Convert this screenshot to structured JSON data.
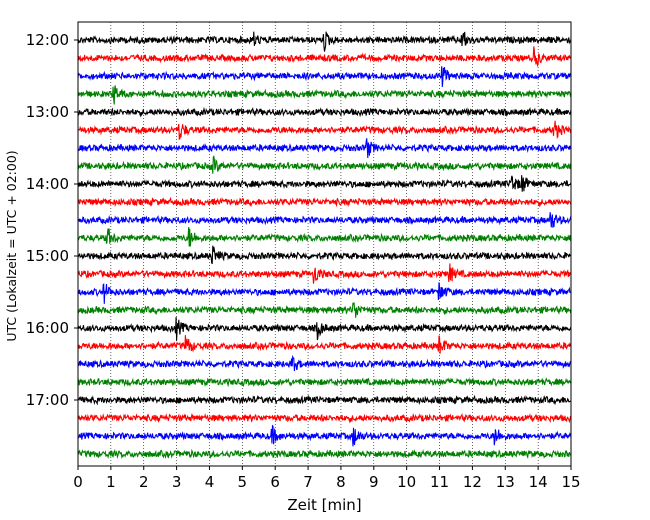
{
  "chart_data": {
    "type": "line",
    "title": "",
    "xlabel": "Zeit  [min]",
    "ylabel": "UTC (Lokalzeit = UTC + 02:00)",
    "xlim": [
      0,
      15
    ],
    "x_ticks": [
      "0",
      "1",
      "2",
      "3",
      "4",
      "5",
      "6",
      "7",
      "8",
      "9",
      "10",
      "11",
      "12",
      "13",
      "14",
      "15"
    ],
    "y_tick_labels": [
      "12:00",
      "13:00",
      "14:00",
      "15:00",
      "16:00",
      "17:00"
    ],
    "grid": "vertical dotted at each minute",
    "trace_interval_minutes": 15,
    "color_cycle": [
      "#000000",
      "#ff0000",
      "#0000ff",
      "#008000"
    ],
    "series": [
      {
        "start": "12:00",
        "color": "#000000",
        "events_min": [
          5.3,
          7.5,
          11.7
        ]
      },
      {
        "start": "12:15",
        "color": "#ff0000",
        "events_min": [
          13.9
        ]
      },
      {
        "start": "12:30",
        "color": "#0000ff",
        "events_min": [
          11.1
        ]
      },
      {
        "start": "12:45",
        "color": "#008000",
        "events_min": [
          1.1
        ]
      },
      {
        "start": "13:00",
        "color": "#000000",
        "events_min": []
      },
      {
        "start": "13:15",
        "color": "#ff0000",
        "events_min": [
          3.1,
          14.5
        ]
      },
      {
        "start": "13:30",
        "color": "#0000ff",
        "events_min": [
          8.8
        ]
      },
      {
        "start": "13:45",
        "color": "#008000",
        "events_min": [
          4.1
        ]
      },
      {
        "start": "14:00",
        "color": "#000000",
        "events_min": [
          13.2,
          13.5
        ]
      },
      {
        "start": "14:15",
        "color": "#ff0000",
        "events_min": []
      },
      {
        "start": "14:30",
        "color": "#0000ff",
        "events_min": [
          14.4
        ]
      },
      {
        "start": "14:45",
        "color": "#008000",
        "events_min": [
          0.9,
          3.4
        ]
      },
      {
        "start": "15:00",
        "color": "#000000",
        "events_min": [
          4.1
        ]
      },
      {
        "start": "15:15",
        "color": "#ff0000",
        "events_min": [
          7.2,
          11.3
        ]
      },
      {
        "start": "15:30",
        "color": "#0000ff",
        "events_min": [
          0.8,
          11.0
        ]
      },
      {
        "start": "15:45",
        "color": "#008000",
        "events_min": [
          8.4
        ]
      },
      {
        "start": "16:00",
        "color": "#000000",
        "events_min": [
          3.0,
          7.3
        ]
      },
      {
        "start": "16:15",
        "color": "#ff0000",
        "events_min": [
          3.3,
          11.0
        ]
      },
      {
        "start": "16:30",
        "color": "#0000ff",
        "events_min": [
          6.5
        ]
      },
      {
        "start": "16:45",
        "color": "#008000",
        "events_min": []
      },
      {
        "start": "17:00",
        "color": "#000000",
        "events_min": []
      },
      {
        "start": "17:15",
        "color": "#ff0000",
        "events_min": []
      },
      {
        "start": "17:30",
        "color": "#0000ff",
        "events_min": [
          5.9,
          8.4,
          12.7
        ]
      },
      {
        "start": "17:45",
        "color": "#008000",
        "events_min": []
      }
    ]
  }
}
